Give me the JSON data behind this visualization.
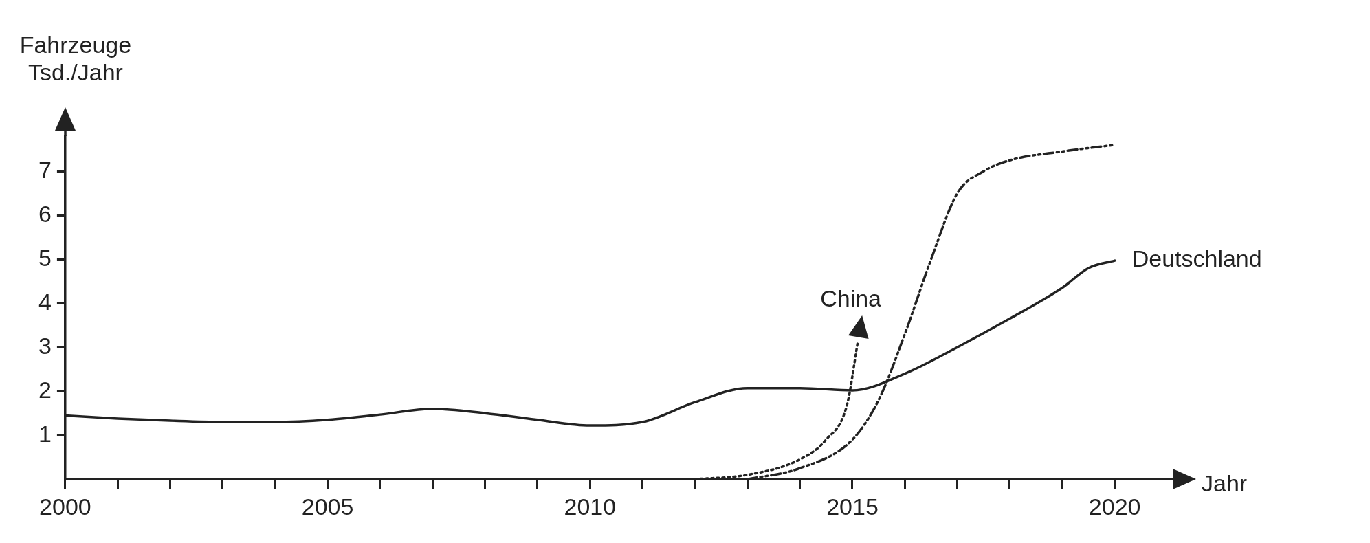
{
  "chart_data": {
    "type": "line",
    "ylabel": "Fahrzeuge\nTsd./Jahr",
    "xlabel": "Jahr",
    "xlim": [
      2000,
      2021
    ],
    "ylim": [
      0,
      7.8
    ],
    "xticks": [
      2000,
      {
        "value": 2001,
        "label": null
      },
      {
        "value": 2002,
        "label": null
      },
      {
        "value": 2003,
        "label": null
      },
      {
        "value": 2004,
        "label": null
      },
      2005,
      {
        "value": 2006,
        "label": null
      },
      {
        "value": 2007,
        "label": null
      },
      {
        "value": 2008,
        "label": null
      },
      {
        "value": 2009,
        "label": null
      },
      2010,
      {
        "value": 2011,
        "label": null
      },
      {
        "value": 2012,
        "label": null
      },
      {
        "value": 2013,
        "label": null
      },
      {
        "value": 2014,
        "label": null
      },
      2015,
      {
        "value": 2016,
        "label": null
      },
      {
        "value": 2017,
        "label": null
      },
      {
        "value": 2018,
        "label": null
      },
      {
        "value": 2019,
        "label": null
      },
      2020
    ],
    "yticks": [
      1,
      2,
      3,
      4,
      5,
      6,
      7
    ],
    "grid": false,
    "legend": false,
    "marker": "none",
    "series": [
      {
        "name": "Deutschland",
        "color": "#222222",
        "line_style": "solid",
        "x": [
          2000,
          2001,
          2002,
          2003,
          2004,
          2005,
          2006,
          2007,
          2008,
          2009,
          2010,
          2011,
          2012,
          2013,
          2014,
          2015,
          2016,
          2017,
          2018,
          2019,
          2019.5,
          2020
        ],
        "values": [
          1.45,
          1.38,
          1.33,
          1.3,
          1.3,
          1.35,
          1.47,
          1.6,
          1.5,
          1.35,
          1.22,
          1.3,
          1.75,
          2.07,
          2.07,
          2.02,
          2.4,
          3.0,
          3.65,
          4.35,
          4.8,
          4.97
        ]
      },
      {
        "name": "China",
        "color": "#222222",
        "line_style": "dotted",
        "x": [
          2012,
          2013,
          2014,
          2014.5,
          2014.9,
          2015.1
        ],
        "values": [
          0,
          0.1,
          0.45,
          0.9,
          1.7,
          3.1
        ]
      },
      {
        "color": "#222222",
        "line_style": "dashed",
        "x": [
          2013,
          2014,
          2015,
          2015.5,
          2016,
          2016.5,
          2017,
          2017.5,
          2018,
          2019,
          2020
        ],
        "values": [
          0,
          0.25,
          0.9,
          1.8,
          3.3,
          5.0,
          6.5,
          7.0,
          7.25,
          7.45,
          7.6
        ]
      }
    ]
  }
}
